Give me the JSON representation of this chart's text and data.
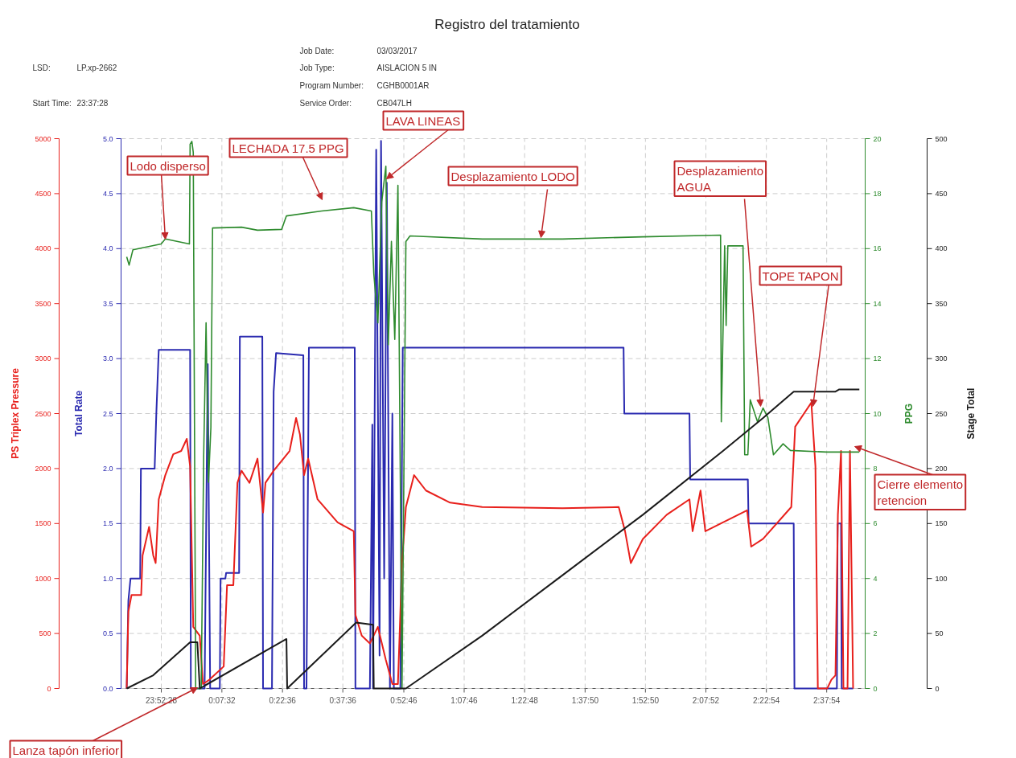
{
  "chart_data": [
    {
      "type": "line",
      "title": "Registro del tratamiento",
      "xlim": [
        "2017-03-03T23:42:28",
        "2017-03-04T02:47:28"
      ],
      "xticks": [
        {
          "value": "2017-03-03T23:52:28",
          "label": "23:52:28"
        },
        {
          "value": "2017-03-04T00:07:32",
          "label": "0:07:32"
        },
        {
          "value": "2017-03-04T00:22:36",
          "label": "0:22:36"
        },
        {
          "value": "2017-03-04T00:37:36",
          "label": "0:37:36"
        },
        {
          "value": "2017-03-04T00:52:46",
          "label": "0:52:46"
        },
        {
          "value": "2017-03-04T01:07:46",
          "label": "1:07:46"
        },
        {
          "value": "2017-03-04T01:22:48",
          "label": "1:22:48"
        },
        {
          "value": "2017-03-04T01:37:50",
          "label": "1:37:50"
        },
        {
          "value": "2017-03-04T01:52:50",
          "label": "1:52:50"
        },
        {
          "value": "2017-03-04T02:07:52",
          "label": "2:07:52"
        },
        {
          "value": "2017-03-04T02:22:54",
          "label": "2:22:54"
        },
        {
          "value": "2017-03-04T02:37:54",
          "label": "2:37:54"
        }
      ],
      "ylabel": "PS Triplex Pressure",
      "ylim": [
        0,
        5000
      ],
      "yticks": [
        0,
        500,
        1000,
        1500,
        2000,
        2500,
        3000,
        3500,
        4000,
        4500,
        5000
      ],
      "y2label": "Total Rate",
      "y2lim": [
        0,
        5
      ],
      "y2ticks": [
        {
          "value": 0,
          "label": "0.0"
        },
        0.5,
        {
          "value": 1,
          "label": "1.0"
        },
        1.5,
        {
          "value": 2,
          "label": "2.0"
        },
        2.5,
        {
          "value": 3,
          "label": "3.0"
        },
        3.5,
        {
          "value": 4,
          "label": "4.0"
        },
        4.5,
        {
          "value": 5,
          "label": "5.0"
        }
      ],
      "y3label": "PPG",
      "y3lim": [
        0,
        20
      ],
      "y3ticks": [
        0,
        2,
        4,
        6,
        8,
        10,
        12,
        14,
        16,
        18,
        20
      ],
      "grid": true,
      "series": [
        {
          "color": "#e8201c",
          "x": [
            "2017-03-03T23:43:52",
            "2017-03-03T23:44:17",
            "2017-03-03T23:45:04",
            "2017-03-03T23:47:28",
            "2017-03-03T23:47:49",
            "2017-03-03T23:49:26",
            "2017-03-03T23:50:28",
            "2017-03-03T23:51:04",
            "2017-03-03T23:51:50",
            "2017-03-03T23:53:28",
            "2017-03-03T23:55:26",
            "2017-03-03T23:57:25",
            "2017-03-03T23:58:48",
            "2017-03-03T23:59:38",
            "2017-03-04T00:00:25",
            "2017-03-04T00:02:02",
            "2017-03-04T00:02:49",
            "2017-03-04T00:04:26",
            "2017-03-04T00:07:59",
            "2017-03-04T00:08:49",
            "2017-03-04T00:10:23",
            "2017-03-04T00:11:24",
            "2017-03-04T00:12:25",
            "2017-03-04T00:14:24",
            "2017-03-04T00:16:23",
            "2017-03-04T00:17:46",
            "2017-03-04T00:18:22",
            "2017-03-04T00:20:24",
            "2017-03-04T00:24:22",
            "2017-03-04T00:25:59",
            "2017-03-04T00:26:56",
            "2017-03-04T00:27:58",
            "2017-03-04T00:28:59",
            "2017-03-04T00:31:19",
            "2017-03-04T00:36:18",
            "2017-03-04T00:40:19",
            "2017-03-04T00:40:44",
            "2017-03-04T00:42:18",
            "2017-03-04T00:44:20",
            "2017-03-04T00:46:19",
            "2017-03-04T00:48:18",
            "2017-03-04T00:49:55",
            "2017-03-04T00:51:18",
            "2017-03-04T00:52:19",
            "2017-03-04T00:53:17",
            "2017-03-04T00:55:19",
            "2017-03-04T00:58:16",
            "2017-03-04T01:04:16",
            "2017-03-04T01:12:14",
            "2017-03-04T01:32:13",
            "2017-03-04T01:46:12",
            "2017-03-04T01:47:46",
            "2017-03-04T01:49:12",
            "2017-03-04T01:52:12",
            "2017-03-04T01:58:08",
            "2017-03-04T02:03:47",
            "2017-03-04T02:04:34",
            "2017-03-04T02:06:32",
            "2017-03-04T02:07:44",
            "2017-03-04T02:12:07",
            "2017-03-04T02:18:07",
            "2017-03-04T02:19:08",
            "2017-03-04T02:22:05",
            "2017-03-04T02:29:06",
            "2017-03-04T02:30:04",
            "2017-03-04T02:34:05",
            "2017-03-04T02:35:06",
            "2017-03-04T02:35:42",
            "2017-03-04T02:38:02",
            "2017-03-04T02:39:04",
            "2017-03-04T02:40:05",
            "2017-03-04T02:40:41",
            "2017-03-04T02:41:28",
            "2017-03-04T02:42:04",
            "2017-03-04T02:43:05",
            "2017-03-04T02:43:41",
            "2017-03-04T02:44:28"
          ],
          "values": [
            0,
            700,
            850,
            850,
            1210,
            1470,
            1210,
            1140,
            1720,
            1940,
            2130,
            2160,
            2270,
            2020,
            560,
            480,
            40,
            80,
            200,
            940,
            940,
            1870,
            1980,
            1870,
            2090,
            1600,
            1870,
            1980,
            2160,
            2460,
            2310,
            1940,
            2090,
            1720,
            1510,
            1430,
            670,
            480,
            410,
            560,
            260,
            40,
            40,
            1140,
            1650,
            1940,
            1800,
            1690,
            1650,
            1640,
            1650,
            1430,
            1140,
            1360,
            1580,
            1720,
            1430,
            1800,
            1430,
            1510,
            1620,
            1290,
            1360,
            1650,
            2380,
            2600,
            2020,
            0,
            0,
            80,
            120,
            1580,
            2160,
            0,
            0,
            2160,
            0
          ]
        },
        {
          "axis": "y2",
          "color": "#2a2ab0",
          "x": [
            "2017-03-03T23:43:52",
            "2017-03-03T23:44:17",
            "2017-03-03T23:44:49",
            "2017-03-03T23:47:13",
            "2017-03-03T23:47:24",
            "2017-03-03T23:50:49",
            "2017-03-03T23:51:14",
            "2017-03-03T23:51:50",
            "2017-03-03T23:59:38",
            "2017-03-03T23:59:49",
            "2017-03-04T00:03:14",
            "2017-03-04T00:04:01",
            "2017-03-04T00:04:37",
            "2017-03-04T00:07:01",
            "2017-03-04T00:07:12",
            "2017-03-04T00:08:24",
            "2017-03-04T00:08:35",
            "2017-03-04T00:11:49",
            "2017-03-04T00:12:00",
            "2017-03-04T00:17:35",
            "2017-03-04T00:17:46",
            "2017-03-04T00:19:59",
            "2017-03-04T00:20:24",
            "2017-03-04T00:21:00",
            "2017-03-04T00:27:47",
            "2017-03-04T00:27:58",
            "2017-03-04T00:28:34",
            "2017-03-04T00:29:10",
            "2017-03-04T00:40:34",
            "2017-03-04T00:40:44",
            "2017-03-04T00:44:20",
            "2017-03-04T00:44:56",
            "2017-03-04T00:45:07",
            "2017-03-04T00:45:54",
            "2017-03-04T00:46:44",
            "2017-03-04T00:47:06",
            "2017-03-04T00:47:53",
            "2017-03-04T00:48:32",
            "2017-03-04T00:49:19",
            "2017-03-04T00:49:55",
            "2017-03-04T00:50:17",
            "2017-03-04T00:51:54",
            "2017-03-04T00:52:30",
            "2017-03-04T01:47:24",
            "2017-03-04T01:47:35",
            "2017-03-04T02:03:47",
            "2017-03-04T02:03:58",
            "2017-03-04T02:18:18",
            "2017-03-04T02:18:29",
            "2017-03-04T02:29:42",
            "2017-03-04T02:29:53",
            "2017-03-04T02:40:26",
            "2017-03-04T02:40:37",
            "2017-03-04T02:41:28",
            "2017-03-04T02:41:38",
            "2017-03-04T02:44:28"
          ],
          "values": [
            0,
            0.8,
            1.0,
            1.0,
            2.0,
            2.0,
            2.5,
            3.08,
            3.08,
            0,
            0,
            2.95,
            0,
            0,
            1.0,
            1.0,
            1.05,
            1.05,
            3.2,
            3.2,
            0,
            0,
            2.7,
            3.05,
            3.03,
            0,
            0,
            3.1,
            3.1,
            0,
            0,
            2.4,
            0,
            4.9,
            0.3,
            4.98,
            1.0,
            4.6,
            0,
            2.5,
            0,
            0,
            3.1,
            3.1,
            2.5,
            2.5,
            1.9,
            1.9,
            1.5,
            1.5,
            0,
            0,
            1.5,
            1.5,
            0,
            0
          ]
        },
        {
          "axis": "y3",
          "color": "#2e8b2e",
          "x": [
            "2017-03-03T23:43:52",
            "2017-03-03T23:44:28",
            "2017-03-03T23:45:25",
            "2017-03-03T23:52:26",
            "2017-03-03T23:53:28",
            "2017-03-03T23:59:28",
            "2017-03-03T23:59:38",
            "2017-03-04T00:00:04",
            "2017-03-04T00:00:25",
            "2017-03-04T00:01:01",
            "2017-03-04T00:02:24",
            "2017-03-04T00:03:00",
            "2017-03-04T00:03:36",
            "2017-03-04T00:04:12",
            "2017-03-04T00:04:48",
            "2017-03-04T00:05:13",
            "2017-03-04T00:12:25",
            "2017-03-04T00:16:23",
            "2017-03-04T00:22:23",
            "2017-03-04T00:23:35",
            "2017-03-04T00:32:20",
            "2017-03-04T00:40:19",
            "2017-03-04T00:44:42",
            "2017-03-04T00:45:18",
            "2017-03-04T00:46:19",
            "2017-03-04T00:47:17",
            "2017-03-04T00:48:18",
            "2017-03-04T00:48:54",
            "2017-03-04T00:49:41",
            "2017-03-04T00:50:31",
            "2017-03-04T00:51:18",
            "2017-03-04T00:52:19",
            "2017-03-04T00:53:17",
            "2017-03-04T00:54:18",
            "2017-03-04T01:12:14",
            "2017-03-04T01:32:13",
            "2017-03-04T01:52:12",
            "2017-03-04T02:11:31",
            "2017-03-04T02:11:42",
            "2017-03-04T02:12:32",
            "2017-03-04T02:12:54",
            "2017-03-04T02:13:19",
            "2017-03-04T02:17:06",
            "2017-03-04T02:17:31",
            "2017-03-04T02:18:18",
            "2017-03-04T02:18:54",
            "2017-03-04T02:20:42",
            "2017-03-04T02:22:05",
            "2017-03-04T02:23:17",
            "2017-03-04T02:24:40",
            "2017-03-04T02:27:04",
            "2017-03-04T02:28:52",
            "2017-03-04T02:37:52",
            "2017-03-04T02:46:01"
          ],
          "values": [
            15.7,
            15.4,
            15.96,
            16.17,
            16.35,
            16.17,
            19.8,
            19.9,
            19.5,
            0,
            0,
            8.4,
            13.3,
            7.5,
            9.5,
            16.75,
            16.78,
            16.67,
            16.7,
            17.19,
            17.37,
            17.49,
            17.37,
            15.1,
            13.3,
            17.7,
            19.0,
            12.5,
            16.26,
            12.7,
            18.3,
            0,
            16.26,
            16.46,
            16.35,
            16.35,
            16.43,
            16.49,
            9.7,
            16.1,
            13.2,
            16.1,
            16.1,
            8.5,
            8.5,
            10.5,
            9.7,
            10.2,
            9.85,
            8.5,
            8.9,
            8.66,
            8.6,
            8.6
          ]
        }
      ],
      "annotations": [
        "LSD:",
        "LP.xp-2662",
        "Start Time:",
        "23:37:28",
        "Job Date:",
        "03/03/2017",
        "Job Type:",
        "AISLACION 5 IN",
        "Program Number:",
        "CGHB0001AR",
        "Service Order:",
        "CB047LH",
        "Lodo disperso",
        "LECHADA 17.5 PPG",
        "LAVA LINEAS",
        "Desplazamiento LODO",
        "Desplazamiento AGUA",
        "TOPE TAPON",
        "Cierre elemento retencion",
        "Lanza tapón inferior"
      ]
    },
    {
      "type": "line",
      "tick_labels": "y",
      "xlim": [
        "2017-03-03T23:42:28",
        "2017-03-04T02:47:28"
      ],
      "ylabel": "Stage Total",
      "ylim": [
        0,
        500
      ],
      "yticks": [
        0,
        50,
        100,
        150,
        200,
        250,
        300,
        350,
        400,
        450,
        500
      ],
      "series": [
        {
          "color": "#1a1a1a",
          "x": [
            "2017-03-03T23:43:52",
            "2017-03-03T23:50:28",
            "2017-03-03T23:59:38",
            "2017-03-04T00:01:26",
            "2017-03-04T00:02:02",
            "2017-03-04T00:23:35",
            "2017-03-04T00:23:46",
            "2017-03-04T00:40:55",
            "2017-03-04T00:45:07",
            "2017-03-04T00:45:18",
            "2017-03-04T00:53:17",
            "2017-03-04T01:12:14",
            "2017-03-04T01:32:13",
            "2017-03-04T01:52:12",
            "2017-03-04T02:12:07",
            "2017-03-04T02:22:05",
            "2017-03-04T02:29:42",
            "2017-03-04T02:40:05",
            "2017-03-04T02:41:02",
            "2017-03-04T02:46:01"
          ],
          "values": [
            0,
            12,
            42,
            42,
            0,
            45,
            0,
            60,
            58,
            0,
            0,
            48,
            103,
            158,
            216,
            246,
            270,
            270,
            272,
            272
          ]
        }
      ]
    }
  ]
}
